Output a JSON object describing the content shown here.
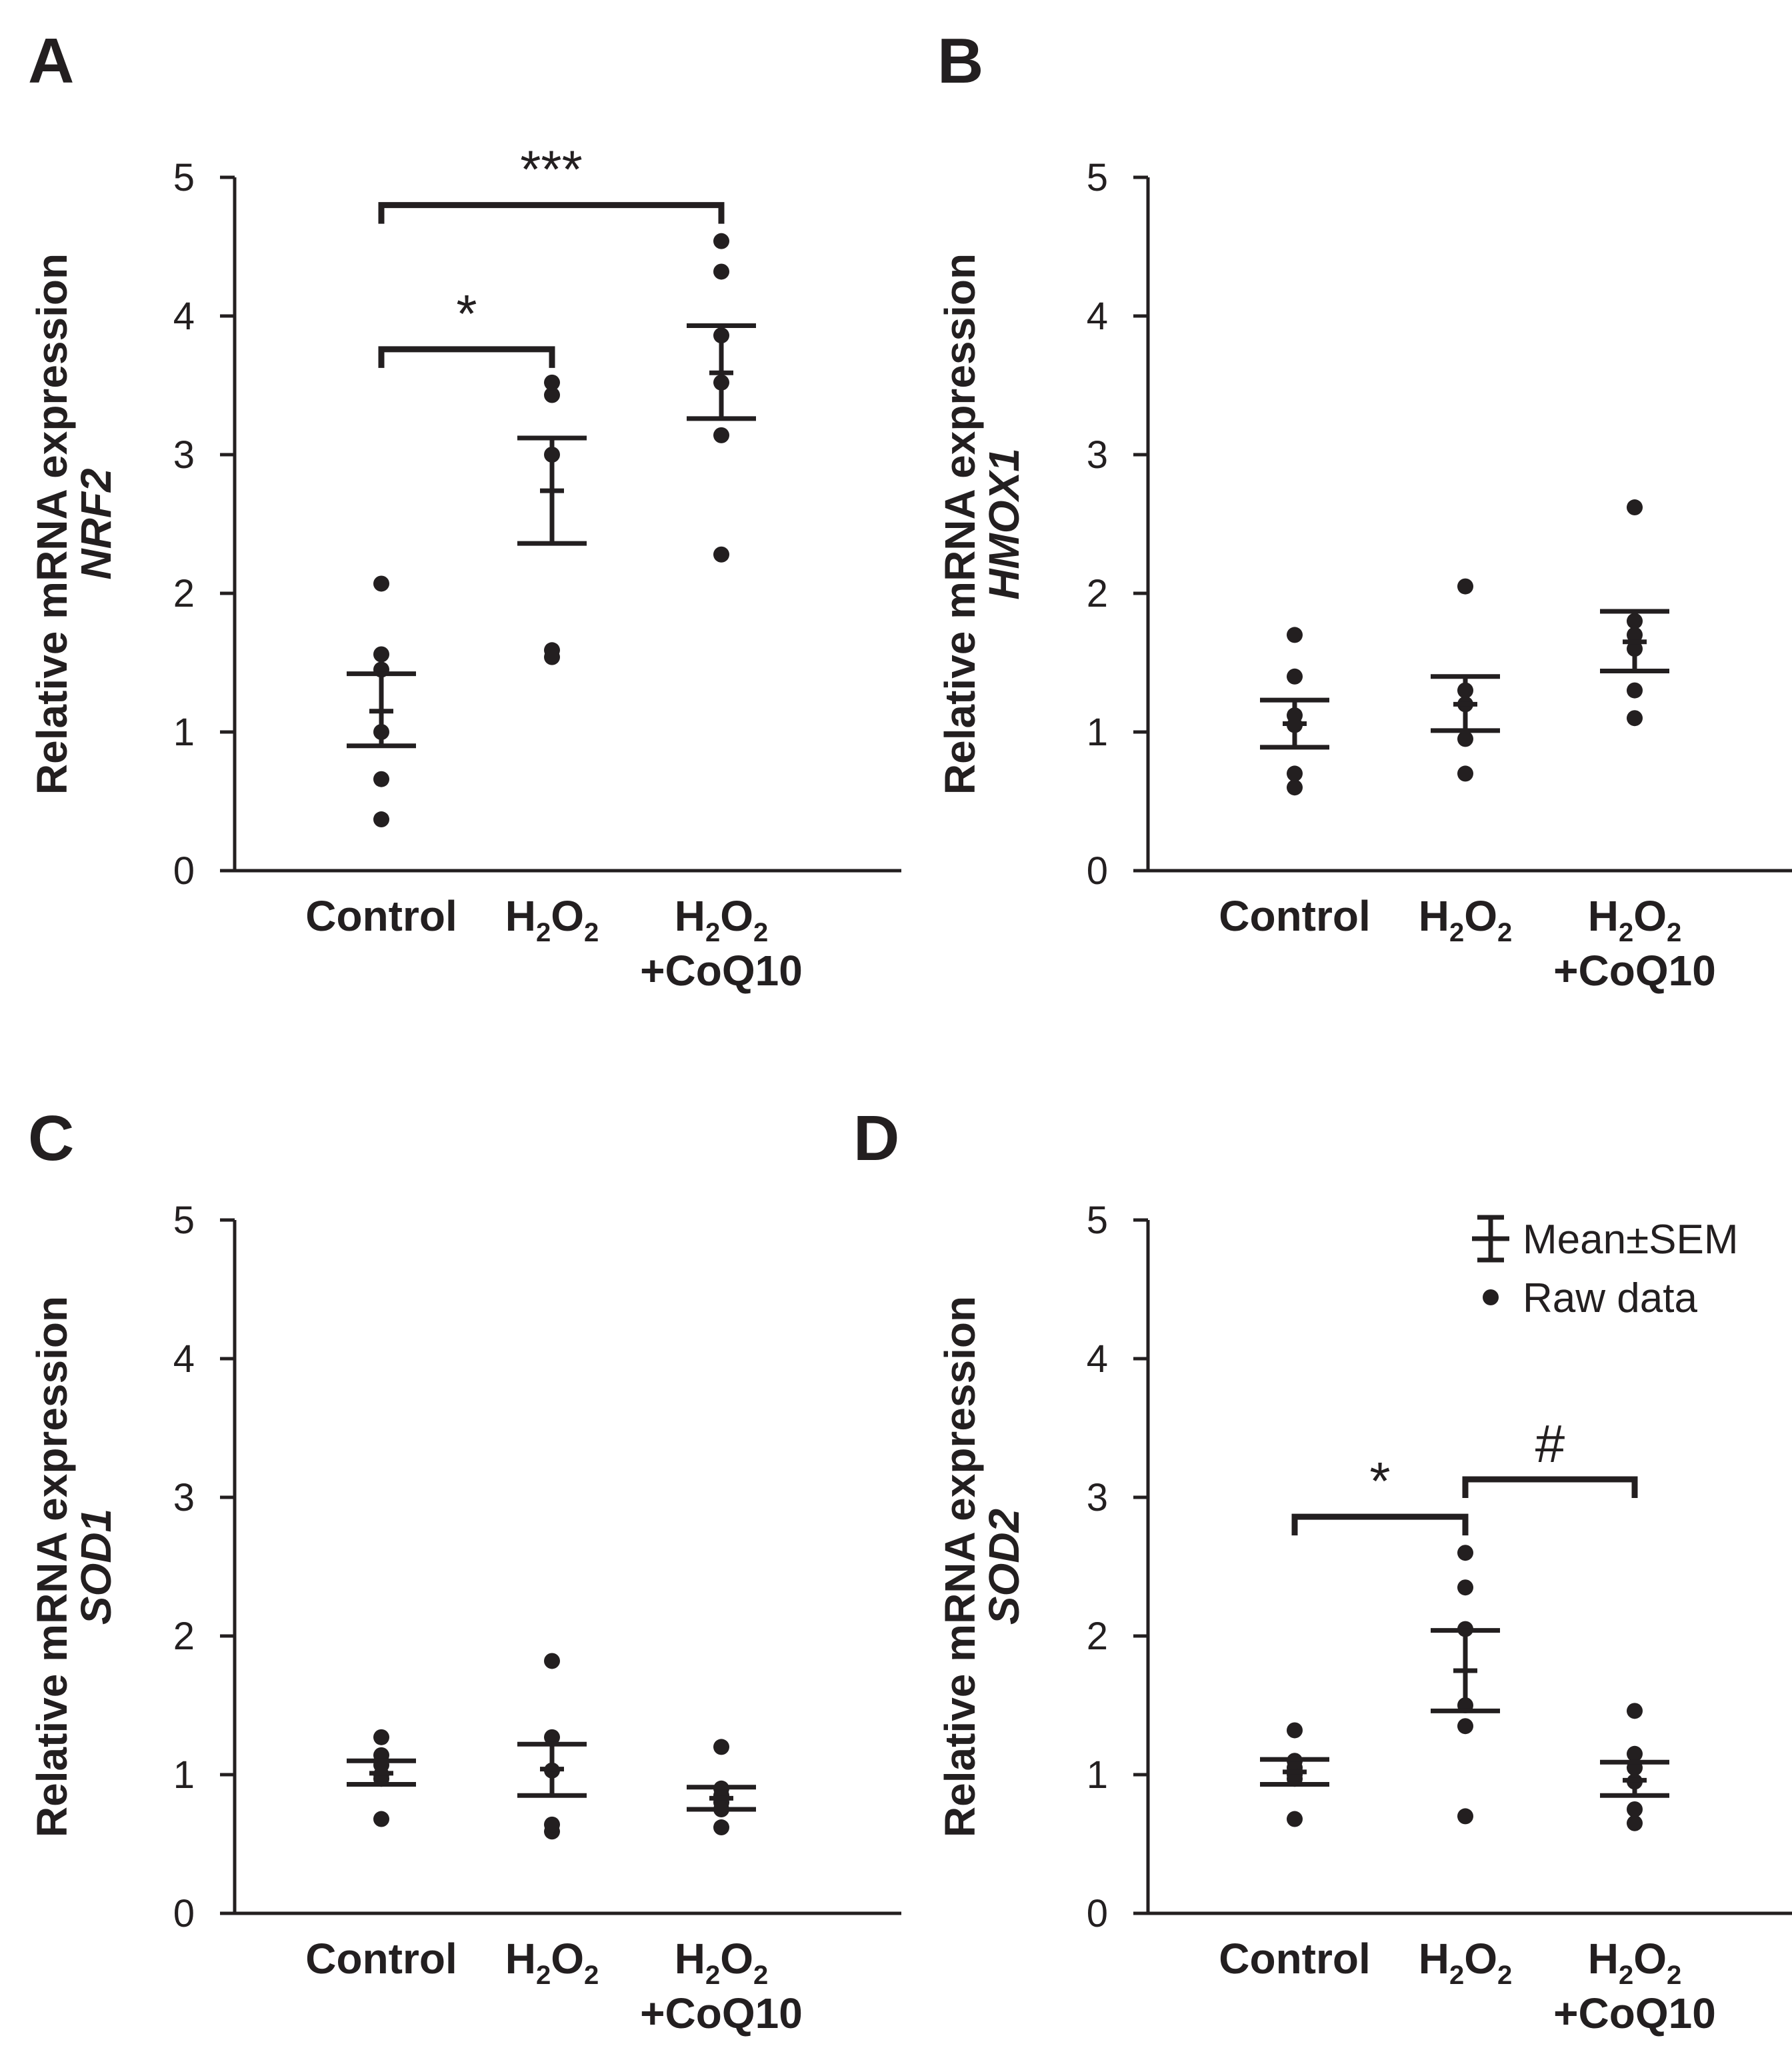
{
  "legend": {
    "mean_sem_label": "Mean±SEM",
    "raw_label": "Raw data"
  },
  "chart_data": [
    {
      "type": "scatter",
      "panel": "A",
      "title": "",
      "ylabel": "Relative mRNA expression",
      "gene": "NRF2",
      "ylim": [
        0,
        5
      ],
      "yticks": [
        0,
        1,
        2,
        3,
        4,
        5
      ],
      "categories": [
        {
          "main": "Control",
          "lines": [
            [
              {
                "t": "Control",
                "sub": false
              }
            ]
          ]
        },
        {
          "main": "H2O2",
          "lines": [
            [
              {
                "t": "H",
                "sub": false
              },
              {
                "t": "2",
                "sub": true
              },
              {
                "t": "O",
                "sub": false
              },
              {
                "t": "2",
                "sub": true
              }
            ]
          ]
        },
        {
          "main": "H2O2+CoQ10",
          "lines": [
            [
              {
                "t": "H",
                "sub": false
              },
              {
                "t": "2",
                "sub": true
              },
              {
                "t": "O",
                "sub": false
              },
              {
                "t": "2",
                "sub": true
              }
            ],
            [
              {
                "t": "+CoQ10",
                "sub": false
              }
            ]
          ]
        }
      ],
      "series": [
        {
          "name": "Control",
          "mean": 1.15,
          "sem_low": 0.9,
          "sem_high": 1.42,
          "raw": [
            0.37,
            0.66,
            1.0,
            1.45,
            1.56,
            2.07
          ]
        },
        {
          "name": "H2O2",
          "mean": 2.74,
          "sem_low": 2.36,
          "sem_high": 3.12,
          "raw": [
            1.54,
            1.59,
            3.0,
            3.43,
            3.52
          ]
        },
        {
          "name": "H2O2+CoQ10",
          "mean": 3.59,
          "sem_low": 3.26,
          "sem_high": 3.93,
          "raw": [
            2.28,
            3.14,
            3.52,
            3.86,
            4.32,
            4.54
          ]
        }
      ],
      "significance": [
        {
          "from": 0,
          "to": 1,
          "label": "*",
          "level": 3.76
        },
        {
          "from": 0,
          "to": 2,
          "label": "***",
          "level": 4.8
        }
      ]
    },
    {
      "type": "scatter",
      "panel": "B",
      "title": "",
      "ylabel": "Relative mRNA expression",
      "gene": "HMOX1",
      "ylim": [
        0,
        5
      ],
      "yticks": [
        0,
        1,
        2,
        3,
        4,
        5
      ],
      "categories": [
        {
          "main": "Control",
          "lines": [
            [
              {
                "t": "Control",
                "sub": false
              }
            ]
          ]
        },
        {
          "main": "H2O2",
          "lines": [
            [
              {
                "t": "H",
                "sub": false
              },
              {
                "t": "2",
                "sub": true
              },
              {
                "t": "O",
                "sub": false
              },
              {
                "t": "2",
                "sub": true
              }
            ]
          ]
        },
        {
          "main": "H2O2+CoQ10",
          "lines": [
            [
              {
                "t": "H",
                "sub": false
              },
              {
                "t": "2",
                "sub": true
              },
              {
                "t": "O",
                "sub": false
              },
              {
                "t": "2",
                "sub": true
              }
            ],
            [
              {
                "t": "+CoQ10",
                "sub": false
              }
            ]
          ]
        }
      ],
      "series": [
        {
          "name": "Control",
          "mean": 1.06,
          "sem_low": 0.89,
          "sem_high": 1.23,
          "raw": [
            0.6,
            0.7,
            1.05,
            1.12,
            1.4,
            1.7
          ]
        },
        {
          "name": "H2O2",
          "mean": 1.2,
          "sem_low": 1.01,
          "sem_high": 1.4,
          "raw": [
            0.7,
            0.95,
            1.2,
            1.3,
            2.05
          ]
        },
        {
          "name": "H2O2+CoQ10",
          "mean": 1.65,
          "sem_low": 1.44,
          "sem_high": 1.87,
          "raw": [
            1.1,
            1.3,
            1.6,
            1.7,
            1.8,
            2.62
          ]
        }
      ],
      "significance": []
    },
    {
      "type": "scatter",
      "panel": "C",
      "title": "",
      "ylabel": "Relative mRNA expression",
      "gene": "SOD1",
      "ylim": [
        0,
        5
      ],
      "yticks": [
        0,
        1,
        2,
        3,
        4,
        5
      ],
      "categories": [
        {
          "main": "Control",
          "lines": [
            [
              {
                "t": "Control",
                "sub": false
              }
            ]
          ]
        },
        {
          "main": "H2O2",
          "lines": [
            [
              {
                "t": "H",
                "sub": false
              },
              {
                "t": "2",
                "sub": true
              },
              {
                "t": "O",
                "sub": false
              },
              {
                "t": "2",
                "sub": true
              }
            ]
          ]
        },
        {
          "main": "H2O2+CoQ10",
          "lines": [
            [
              {
                "t": "H",
                "sub": false
              },
              {
                "t": "2",
                "sub": true
              },
              {
                "t": "O",
                "sub": false
              },
              {
                "t": "2",
                "sub": true
              }
            ],
            [
              {
                "t": "+CoQ10",
                "sub": false
              }
            ]
          ]
        }
      ],
      "series": [
        {
          "name": "Control",
          "mean": 1.01,
          "sem_low": 0.93,
          "sem_high": 1.1,
          "raw": [
            0.68,
            0.97,
            1.0,
            1.07,
            1.14,
            1.27
          ]
        },
        {
          "name": "H2O2",
          "mean": 1.04,
          "sem_low": 0.85,
          "sem_high": 1.22,
          "raw": [
            0.59,
            0.64,
            1.03,
            1.27,
            1.82
          ]
        },
        {
          "name": "H2O2+CoQ10",
          "mean": 0.83,
          "sem_low": 0.75,
          "sem_high": 0.91,
          "raw": [
            0.62,
            0.75,
            0.8,
            0.85,
            0.9,
            1.2
          ]
        }
      ],
      "significance": []
    },
    {
      "type": "scatter",
      "panel": "D",
      "title": "",
      "ylabel": "Relative mRNA expression",
      "gene": "SOD2",
      "ylim": [
        0,
        5
      ],
      "yticks": [
        0,
        1,
        2,
        3,
        4,
        5
      ],
      "categories": [
        {
          "main": "Control",
          "lines": [
            [
              {
                "t": "Control",
                "sub": false
              }
            ]
          ]
        },
        {
          "main": "H2O2",
          "lines": [
            [
              {
                "t": "H",
                "sub": false
              },
              {
                "t": "2",
                "sub": true
              },
              {
                "t": "O",
                "sub": false
              },
              {
                "t": "2",
                "sub": true
              }
            ]
          ]
        },
        {
          "main": "H2O2+CoQ10",
          "lines": [
            [
              {
                "t": "H",
                "sub": false
              },
              {
                "t": "2",
                "sub": true
              },
              {
                "t": "O",
                "sub": false
              },
              {
                "t": "2",
                "sub": true
              }
            ],
            [
              {
                "t": "+CoQ10",
                "sub": false
              }
            ]
          ]
        }
      ],
      "series": [
        {
          "name": "Control",
          "mean": 1.02,
          "sem_low": 0.93,
          "sem_high": 1.11,
          "raw": [
            0.68,
            0.97,
            1.0,
            1.05,
            1.1,
            1.32
          ]
        },
        {
          "name": "H2O2",
          "mean": 1.75,
          "sem_low": 1.46,
          "sem_high": 2.04,
          "raw": [
            0.7,
            1.35,
            1.5,
            2.05,
            2.35,
            2.6
          ]
        },
        {
          "name": "H2O2+CoQ10",
          "mean": 0.96,
          "sem_low": 0.85,
          "sem_high": 1.09,
          "raw": [
            0.65,
            0.75,
            0.95,
            1.05,
            1.15,
            1.46
          ]
        }
      ],
      "significance": [
        {
          "from": 0,
          "to": 1,
          "label": "*",
          "level": 2.86
        },
        {
          "from": 1,
          "to": 2,
          "label": "#",
          "level": 3.13
        }
      ],
      "show_legend": true
    }
  ]
}
